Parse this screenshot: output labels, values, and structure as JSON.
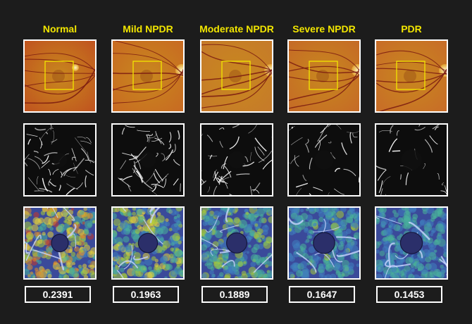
{
  "columns": [
    {
      "title": "Normal",
      "value": "0.2391",
      "macula_color": "#c8881e",
      "fundus_base": "#c0531f",
      "heat_bias": 0.75,
      "octa_density": 0.9
    },
    {
      "title": "Mild NPDR",
      "value": "0.1963",
      "macula_color": "#c8881e",
      "fundus_base": "#c86a22",
      "heat_bias": 0.55,
      "octa_density": 0.8
    },
    {
      "title": "Moderate NPDR",
      "value": "0.1889",
      "macula_color": "#c8881e",
      "fundus_base": "#c67a2a",
      "heat_bias": 0.45,
      "octa_density": 0.7
    },
    {
      "title": "Severe NPDR",
      "value": "0.1647",
      "macula_color": "#c8881e",
      "fundus_base": "#c56a26",
      "heat_bias": 0.35,
      "octa_density": 0.55
    },
    {
      "title": "PDR",
      "value": "0.1453",
      "macula_color": "#c8881e",
      "fundus_base": "#c86c28",
      "heat_bias": 0.3,
      "octa_density": 0.45
    }
  ]
}
